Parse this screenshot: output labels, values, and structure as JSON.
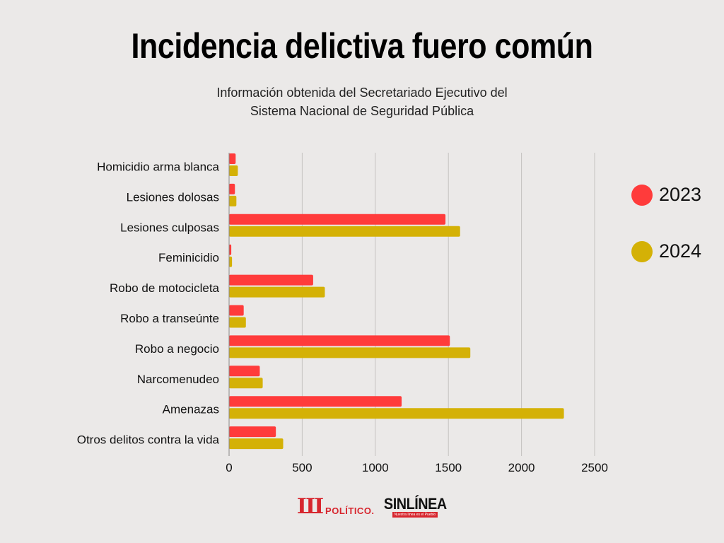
{
  "header": {
    "title": "Incidencia delictiva fuero común",
    "subtitle_line1": "Información obtenida del Secretariado Ejecutivo del",
    "subtitle_line2": "Sistema Nacional de Seguridad Pública"
  },
  "legend": {
    "items": [
      {
        "label": "2023",
        "color": "#ff3b3b"
      },
      {
        "label": "2024",
        "color": "#d4b106"
      }
    ]
  },
  "logos": {
    "elpolitico": "POLÍTICO.",
    "sinlinea": "SINLÍNEA",
    "sinlinea_tag": "Nuestra línea es el Pueblo"
  },
  "chart_data": {
    "type": "bar",
    "orientation": "horizontal",
    "title": "Incidencia delictiva fuero común",
    "subtitle": "Información obtenida del Secretariado Ejecutivo del Sistema Nacional de Seguridad Pública",
    "categories": [
      "Homicidio arma blanca",
      "Lesiones dolosas",
      "Lesiones culposas",
      "Feminicidio",
      "Robo de motocicleta",
      "Robo a transeúnte",
      "Robo a negocio",
      "Narcomenudeo",
      "Amenazas",
      "Otros delitos contra la vida"
    ],
    "series": [
      {
        "name": "2023",
        "color": "#ff3b3b",
        "values": [
          45,
          40,
          1480,
          15,
          575,
          100,
          1510,
          210,
          1180,
          320
        ]
      },
      {
        "name": "2024",
        "color": "#d4b106",
        "values": [
          60,
          50,
          1580,
          20,
          655,
          115,
          1650,
          230,
          2290,
          370
        ]
      }
    ],
    "xlim": [
      0,
      2500
    ],
    "xticks": [
      "0",
      "500",
      "1000",
      "1500",
      "2000",
      "2500"
    ],
    "grid": true,
    "legend_position": "right"
  }
}
